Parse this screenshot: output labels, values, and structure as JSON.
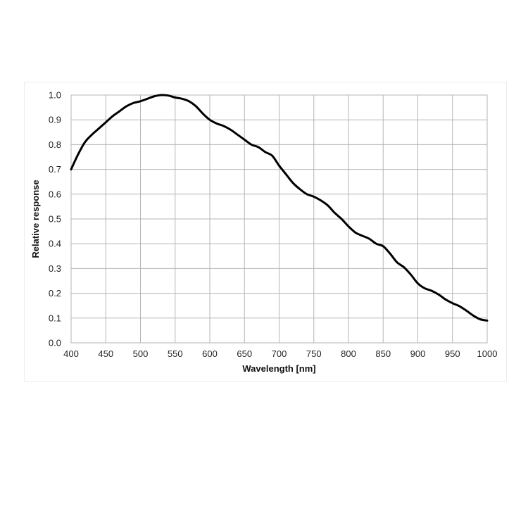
{
  "chart_data": {
    "type": "line",
    "title": "",
    "xlabel": "Wavelength [nm]",
    "ylabel": "Relative response",
    "xlim": [
      400,
      1000
    ],
    "ylim": [
      0,
      1.0
    ],
    "x_ticks": [
      "400",
      "450",
      "500",
      "550",
      "600",
      "650",
      "700",
      "750",
      "800",
      "850",
      "900",
      "950",
      "1000"
    ],
    "y_ticks": [
      "0.0",
      "0.1",
      "0.2",
      "0.3",
      "0.4",
      "0.5",
      "0.6",
      "0.7",
      "0.8",
      "0.9",
      "1.0"
    ],
    "grid": true,
    "legend": "none",
    "line_color": "#000000",
    "grid_color": "#b5b5b5",
    "series": [
      {
        "x": [
          400,
          410,
          420,
          430,
          440,
          450,
          460,
          470,
          480,
          490,
          500,
          510,
          520,
          530,
          540,
          550,
          560,
          570,
          580,
          590,
          600,
          610,
          620,
          630,
          640,
          650,
          660,
          670,
          680,
          690,
          700,
          710,
          720,
          730,
          740,
          750,
          760,
          770,
          780,
          790,
          800,
          810,
          820,
          830,
          840,
          850,
          860,
          870,
          880,
          890,
          900,
          910,
          920,
          930,
          940,
          950,
          960,
          970,
          980,
          990,
          1000
        ],
        "y": [
          0.7,
          0.76,
          0.81,
          0.84,
          0.865,
          0.89,
          0.915,
          0.935,
          0.955,
          0.968,
          0.975,
          0.985,
          0.995,
          1.0,
          0.998,
          0.99,
          0.985,
          0.975,
          0.955,
          0.925,
          0.9,
          0.885,
          0.875,
          0.86,
          0.84,
          0.82,
          0.8,
          0.79,
          0.77,
          0.755,
          0.715,
          0.68,
          0.645,
          0.62,
          0.6,
          0.59,
          0.575,
          0.555,
          0.525,
          0.5,
          0.47,
          0.445,
          0.432,
          0.42,
          0.4,
          0.39,
          0.36,
          0.325,
          0.305,
          0.275,
          0.24,
          0.22,
          0.21,
          0.195,
          0.175,
          0.16,
          0.148,
          0.13,
          0.11,
          0.095,
          0.09
        ]
      }
    ]
  }
}
